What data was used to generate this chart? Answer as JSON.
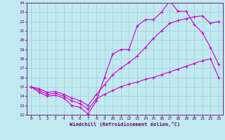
{
  "xlabel": "Windchill (Refroidissement éolien,°C)",
  "background_color": "#c0eaf0",
  "grid_color": "#a0ccd8",
  "line_color": "#cc00cc",
  "xlim": [
    -0.5,
    23.5
  ],
  "ylim": [
    12,
    24
  ],
  "xticks": [
    0,
    1,
    2,
    3,
    4,
    5,
    6,
    7,
    8,
    9,
    10,
    11,
    12,
    13,
    14,
    15,
    16,
    17,
    18,
    19,
    20,
    21,
    22,
    23
  ],
  "yticks": [
    12,
    13,
    14,
    15,
    16,
    17,
    18,
    19,
    20,
    21,
    22,
    23,
    24
  ],
  "line1_x": [
    0,
    1,
    2,
    3,
    4,
    5,
    6,
    7,
    8,
    9,
    10,
    11,
    12,
    13,
    14,
    15,
    16,
    17,
    18,
    19,
    20,
    21,
    22,
    23
  ],
  "line1_y": [
    15.0,
    14.4,
    14.0,
    14.1,
    13.8,
    13.0,
    12.8,
    12.1,
    13.5,
    16.0,
    18.5,
    19.0,
    19.0,
    21.5,
    22.2,
    22.2,
    23.0,
    24.2,
    23.1,
    23.1,
    21.7,
    20.8,
    19.2,
    17.4
  ],
  "line2_x": [
    0,
    1,
    2,
    3,
    4,
    5,
    6,
    7,
    8,
    9,
    10,
    11,
    12,
    13,
    14,
    15,
    16,
    17,
    18,
    19,
    20,
    21,
    22,
    23
  ],
  "line2_y": [
    15.0,
    14.8,
    14.4,
    14.5,
    14.2,
    13.8,
    13.5,
    13.0,
    14.2,
    15.2,
    16.3,
    17.0,
    17.6,
    18.3,
    19.2,
    20.2,
    21.0,
    21.8,
    22.1,
    22.3,
    22.5,
    22.6,
    21.8,
    22.0
  ],
  "line3_x": [
    0,
    1,
    2,
    3,
    4,
    5,
    6,
    7,
    8,
    9,
    10,
    11,
    12,
    13,
    14,
    15,
    16,
    17,
    18,
    19,
    20,
    21,
    22,
    23
  ],
  "line3_y": [
    15.0,
    14.6,
    14.2,
    14.3,
    14.0,
    13.5,
    13.2,
    12.6,
    13.7,
    14.2,
    14.6,
    15.0,
    15.3,
    15.5,
    15.8,
    16.0,
    16.3,
    16.6,
    16.9,
    17.2,
    17.5,
    17.8,
    18.0,
    16.0
  ]
}
